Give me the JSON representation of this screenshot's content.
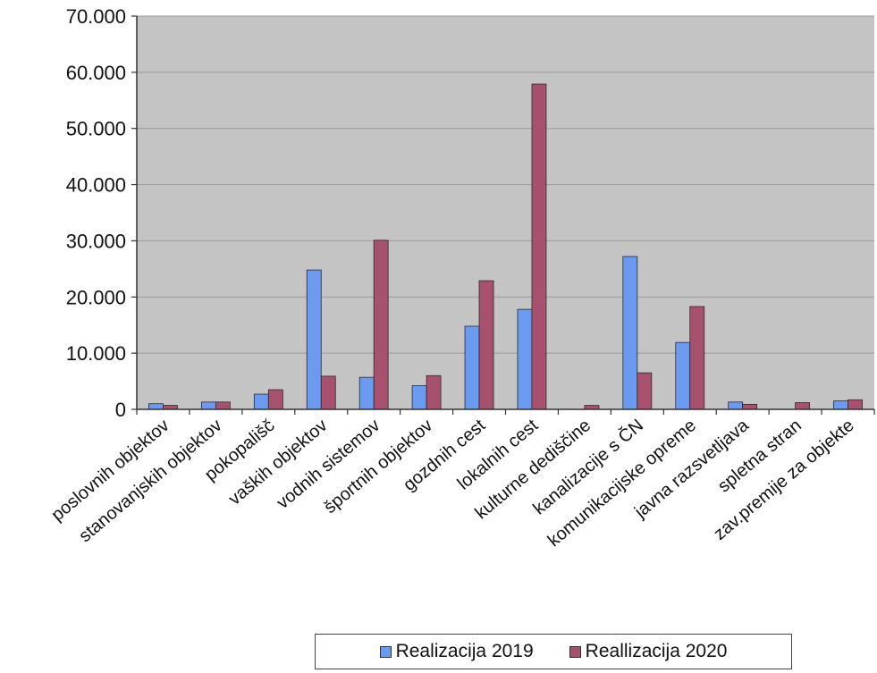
{
  "chart_data": {
    "type": "bar",
    "title": "",
    "xlabel": "",
    "ylabel": "",
    "ylim": [
      0,
      70000
    ],
    "yticks": [
      0,
      10000,
      20000,
      30000,
      40000,
      50000,
      60000,
      70000
    ],
    "ytick_labels": [
      "0",
      "10.000",
      "20.000",
      "30.000",
      "40.000",
      "50.000",
      "60.000",
      "70.000"
    ],
    "grid": true,
    "legend_position": "bottom",
    "categories": [
      "poslovnih objektov",
      "stanovanjskih objektov",
      "pokopališč",
      "vaških objektov",
      "vodnih sistemov",
      "športnih objektov",
      "gozdnih cest",
      "lokalnih cest",
      "kulturne dediščine",
      "kanalizacije s ČN",
      "komunikacijske opreme",
      "javna razsvetljava",
      "spletna stran",
      "zav.premije za objekte"
    ],
    "series": [
      {
        "name": "Realizacija 2019",
        "color": "#6b9bf0",
        "values": [
          1000,
          1300,
          2700,
          24800,
          5700,
          4200,
          14800,
          17800,
          0,
          27200,
          11900,
          1300,
          0,
          1500
        ]
      },
      {
        "name": "Reallizacija 2020",
        "color": "#a8516e",
        "values": [
          700,
          1300,
          3500,
          5900,
          30100,
          6000,
          22900,
          57900,
          700,
          6500,
          18300,
          900,
          1200,
          1700
        ]
      }
    ]
  }
}
